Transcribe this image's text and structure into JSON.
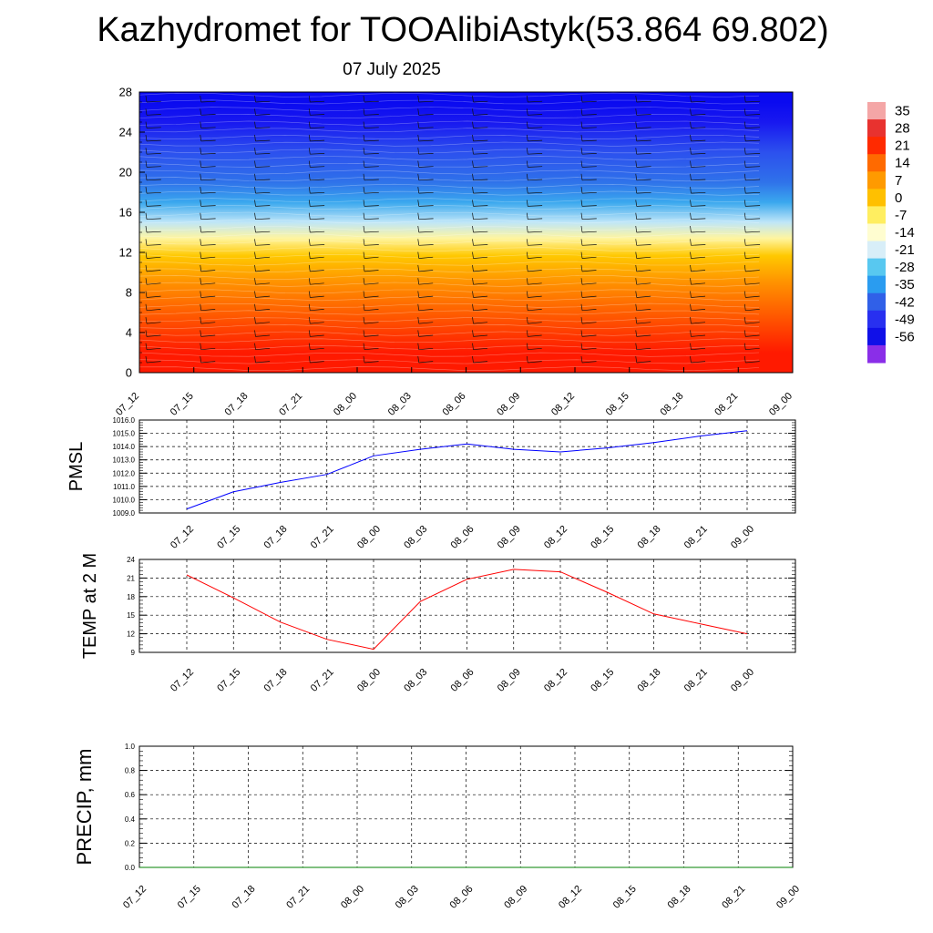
{
  "header": {
    "title": "Kazhydromet for TOOAlibiAstyk(53.864 69.802)",
    "date": "07 July 2025"
  },
  "chart_data": [
    {
      "type": "heatmap",
      "name": "cross-section",
      "ylim": [
        0,
        28
      ],
      "yticks": [
        "0",
        "4",
        "8",
        "12",
        "16",
        "20",
        "24",
        "28"
      ],
      "xticks": [
        "07_12",
        "07_15",
        "07_18",
        "07_21",
        "08_00",
        "08_03",
        "08_06",
        "08_09",
        "08_12",
        "08_15",
        "08_18",
        "08_21",
        "09_00"
      ],
      "colorbar": {
        "labels": [
          "35",
          "28",
          "21",
          "14",
          "7",
          "0",
          "-7",
          "-14",
          "-21",
          "-28",
          "-35",
          "-42",
          "-49",
          "-56"
        ],
        "colors": [
          "#f4a6a6",
          "#e8322f",
          "#ff2a00",
          "#ff6a00",
          "#ff9a00",
          "#ffc000",
          "#ffee60",
          "#fffdd0",
          "#d8eef8",
          "#58c8f0",
          "#2a9cf0",
          "#3060e8",
          "#2830f0",
          "#1010e8",
          "#8a2ee8"
        ]
      },
      "band_colors": [
        "#ff1a00",
        "#ff5a00",
        "#ff9200",
        "#ffc800",
        "#fff5a0",
        "#bfe6f8",
        "#3aa8ee",
        "#2f72ea",
        "#2c50ee",
        "#1818f0",
        "#0a0af0"
      ],
      "band_boundaries": [
        0,
        4,
        7.5,
        10.5,
        12.8,
        14,
        16,
        18,
        20,
        24,
        26,
        28
      ]
    },
    {
      "type": "line",
      "name": "pmsl",
      "ylabel": "PMSL",
      "ylim": [
        1009,
        1016
      ],
      "yticks": [
        "1009.0",
        "1010.0",
        "1011.0",
        "1012.0",
        "1013.0",
        "1014.0",
        "1015.0",
        "1016.0"
      ],
      "xticks": [
        "07_12",
        "07_15",
        "07_18",
        "07_21",
        "08_00",
        "08_03",
        "08_06",
        "08_09",
        "08_12",
        "08_15",
        "08_18",
        "08_21",
        "09_00"
      ],
      "values": [
        1009.3,
        1010.6,
        1011.3,
        1011.9,
        1013.3,
        1013.8,
        1014.2,
        1013.8,
        1013.6,
        1013.9,
        1014.3,
        1014.8,
        1015.2
      ],
      "color": "#0000ff"
    },
    {
      "type": "line",
      "name": "temp",
      "ylabel": "TEMP at 2 M",
      "ylim": [
        9,
        24
      ],
      "yticks": [
        "9",
        "12",
        "15",
        "18",
        "21",
        "24"
      ],
      "xticks": [
        "07_12",
        "07_15",
        "07_18",
        "07_21",
        "08_00",
        "08_03",
        "08_06",
        "08_09",
        "08_12",
        "08_15",
        "08_18",
        "08_21",
        "09_00"
      ],
      "values": [
        21.5,
        17.8,
        13.9,
        11.1,
        9.5,
        17.2,
        20.8,
        22.4,
        22.0,
        18.7,
        15.2,
        13.6,
        12.0
      ],
      "color": "#ff0000"
    },
    {
      "type": "line",
      "name": "precip",
      "ylabel": "PRECIP, mm",
      "ylim": [
        0,
        1
      ],
      "yticks": [
        "0.0",
        "0.2",
        "0.4",
        "0.6",
        "0.8",
        "1.0"
      ],
      "xticks": [
        "07_12",
        "07_15",
        "07_18",
        "07_21",
        "08_00",
        "08_03",
        "08_06",
        "08_09",
        "08_12",
        "08_15",
        "08_18",
        "08_21",
        "09_00"
      ],
      "values": [
        0,
        0,
        0,
        0,
        0,
        0,
        0,
        0,
        0,
        0,
        0,
        0,
        0
      ],
      "color": "#008000"
    }
  ]
}
